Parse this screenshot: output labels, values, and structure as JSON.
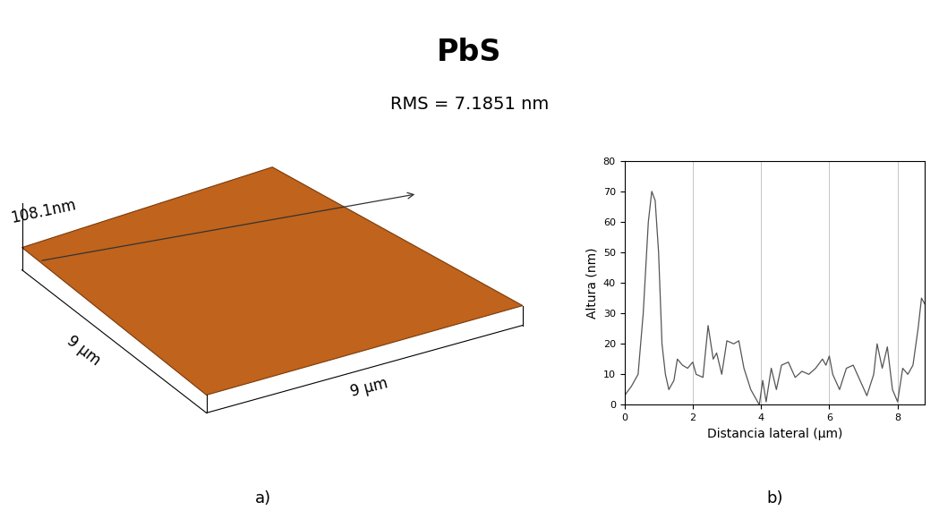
{
  "title": "PbS",
  "subtitle": "RMS = 7.1851 nm",
  "chart_data": [
    {
      "type": "surface",
      "panel_label": "a)",
      "z_label": "108.1nm",
      "x_label": "9 μm",
      "y_label": "9 μm",
      "color": "#c0631c"
    },
    {
      "type": "line",
      "panel_label": "b)",
      "x_label": "Distancia lateral (μm)",
      "y_label": "Altura (nm)",
      "x": [
        0,
        0.2,
        0.4,
        0.55,
        0.7,
        0.8,
        0.9,
        1.0,
        1.1,
        1.2,
        1.3,
        1.45,
        1.55,
        1.7,
        1.85,
        2.0,
        2.1,
        2.3,
        2.45,
        2.6,
        2.7,
        2.85,
        3.0,
        3.2,
        3.35,
        3.5,
        3.7,
        3.85,
        3.95,
        4.05,
        4.15,
        4.3,
        4.45,
        4.6,
        4.8,
        5.0,
        5.2,
        5.4,
        5.6,
        5.8,
        5.9,
        6.0,
        6.1,
        6.3,
        6.5,
        6.7,
        6.9,
        7.1,
        7.3,
        7.4,
        7.55,
        7.7,
        7.85,
        8.0,
        8.15,
        8.3,
        8.45,
        8.6,
        8.7,
        8.8
      ],
      "values": [
        3,
        6,
        10,
        30,
        60,
        70,
        67,
        50,
        20,
        10,
        5,
        8,
        15,
        13,
        12,
        14,
        10,
        9,
        26,
        15,
        17,
        10,
        21,
        20,
        21,
        12,
        5,
        2,
        0,
        8,
        1,
        12,
        5,
        13,
        14,
        9,
        11,
        10,
        12,
        15,
        13,
        16,
        10,
        5,
        12,
        13,
        8,
        3,
        10,
        20,
        12,
        19,
        5,
        1,
        12,
        10,
        13,
        25,
        35,
        33
      ],
      "color": "#555555",
      "xlim": [
        0,
        8.8
      ],
      "ylim": [
        0,
        80
      ],
      "xticks": [
        0,
        2,
        4,
        6,
        8
      ],
      "yticks": [
        0,
        10,
        20,
        30,
        40,
        50,
        60,
        70,
        80
      ],
      "grid": "x"
    }
  ]
}
